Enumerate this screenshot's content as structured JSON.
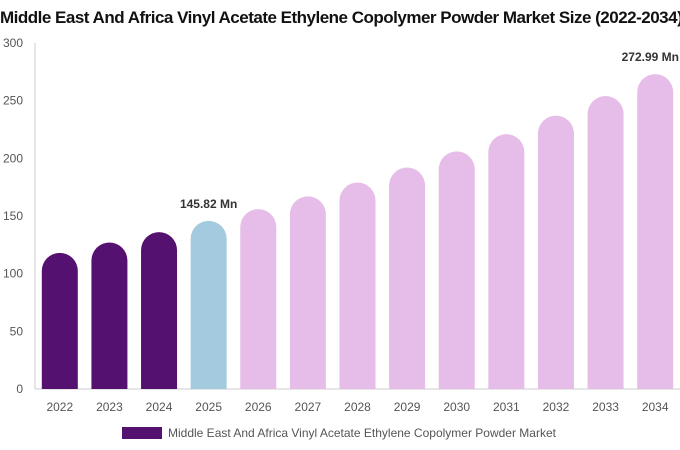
{
  "chart_data": {
    "type": "bar",
    "title": "Middle East And Africa Vinyl Acetate Ethylene Copolymer Powder Market Size (2022-2034)",
    "xlabel": "",
    "ylabel": "",
    "categories": [
      "2022",
      "2023",
      "2024",
      "2025",
      "2026",
      "2027",
      "2028",
      "2029",
      "2030",
      "2031",
      "2032",
      "2033",
      "2034"
    ],
    "series": [
      {
        "name": "Middle East And Africa Vinyl Acetate Ethylene Copolymer Powder Market",
        "values": [
          118,
          127,
          136,
          145.82,
          156,
          167,
          179,
          192,
          206,
          221,
          237,
          254,
          272.99
        ]
      }
    ],
    "ylim": [
      0,
      300
    ],
    "yticks": [
      0,
      50,
      100,
      150,
      200,
      250,
      300
    ],
    "data_labels": [
      {
        "index": 3,
        "text": "145.82 Mn"
      },
      {
        "index": 12,
        "text": "272.99 Mn"
      }
    ],
    "colors": {
      "historical": "#541170",
      "base_year": "#a3cadf",
      "forecast": "#e6bde9",
      "axis": "#cccccc"
    },
    "legend_position": "bottom",
    "grid": false
  }
}
